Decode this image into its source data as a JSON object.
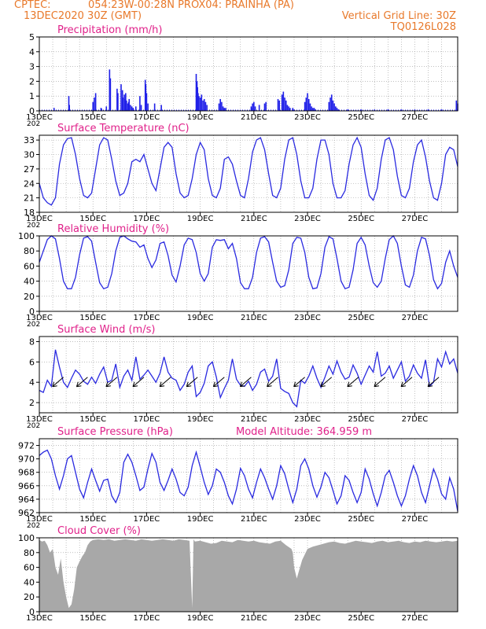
{
  "header": {
    "line1_left": "CPTEC:",
    "line1_mid": "054:23W-00:28N  PROX04: PRAINHA (PA)",
    "line2_left": "13DEC2020 30Z (GMT)",
    "line2_right": "Vertical Grid Line: 30Z",
    "line3_right": "TQ0126L028"
  },
  "colors": {
    "header": "#e8792b",
    "title": "#e0218a",
    "line": "#2a2ae0",
    "bar": "#2020e8",
    "cloud": "#a8a8a8",
    "grid": "#999999",
    "axis": "#000000"
  },
  "x_ticks": [
    "13DEC",
    "15DEC",
    "17DEC",
    "19DEC",
    "21DEC",
    "23DEC",
    "25DEC",
    "27DEC"
  ],
  "x_tick_stub": "202",
  "chart_data": [
    {
      "type": "bar",
      "title": "Precipitation (mm/h)",
      "ylim": [
        0,
        5
      ],
      "yticks": [
        "0",
        "1",
        "2",
        "3",
        "4",
        "5"
      ],
      "x_days": [
        0.55,
        1.1,
        1.12,
        2.0,
        2.05,
        2.1,
        2.3,
        2.32,
        2.5,
        2.62,
        2.65,
        2.9,
        2.93,
        3.05,
        3.1,
        3.12,
        3.17,
        3.2,
        3.22,
        3.25,
        3.3,
        3.33,
        3.35,
        3.4,
        3.45,
        3.5,
        3.6,
        3.75,
        3.8,
        3.95,
        3.97,
        4.0,
        4.05,
        4.3,
        4.55,
        5.85,
        5.88,
        5.9,
        5.92,
        5.95,
        6.0,
        6.05,
        6.1,
        6.15,
        6.2,
        6.25,
        6.7,
        6.75,
        6.8,
        6.85,
        6.9,
        6.95,
        7.9,
        7.92,
        7.95,
        8.0,
        8.05,
        8.2,
        8.4,
        8.45,
        8.9,
        8.95,
        9.05,
        9.1,
        9.15,
        9.2,
        9.25,
        9.3,
        9.35,
        9.45,
        9.5,
        9.9,
        9.95,
        10.0,
        10.05,
        10.1,
        10.15,
        10.2,
        10.25,
        10.3,
        10.8,
        10.85,
        10.9,
        10.95,
        11.0,
        11.05,
        11.1,
        11.15,
        11.5,
        12.0,
        12.5,
        13.0,
        13.5,
        14.0,
        14.5,
        15.0,
        15.55,
        15.6
      ],
      "values": [
        0.2,
        1.0,
        0.4,
        0.6,
        0.9,
        1.2,
        0.2,
        0.15,
        0.3,
        2.8,
        2.2,
        1.5,
        1.2,
        1.8,
        1.4,
        0.9,
        1.1,
        0.8,
        1.2,
        0.7,
        0.5,
        0.6,
        0.8,
        0.4,
        0.3,
        0.2,
        0.3,
        1.0,
        0.4,
        2.1,
        1.8,
        1.2,
        0.5,
        0.5,
        0.4,
        2.5,
        2.0,
        1.6,
        1.2,
        1.0,
        0.9,
        1.1,
        0.7,
        0.8,
        0.6,
        0.4,
        0.5,
        0.8,
        0.6,
        0.3,
        0.2,
        0.2,
        0.3,
        0.2,
        0.5,
        0.6,
        0.3,
        0.4,
        0.5,
        0.6,
        0.8,
        0.7,
        1.1,
        1.3,
        0.9,
        0.7,
        0.4,
        0.3,
        0.2,
        0.2,
        0.1,
        0.6,
        0.9,
        1.2,
        0.8,
        0.5,
        0.3,
        0.2,
        0.2,
        0.1,
        0.6,
        0.9,
        1.1,
        0.7,
        0.5,
        0.3,
        0.2,
        0.1,
        0.1,
        0.1,
        0.1,
        0.1,
        0.1,
        0.1,
        0.1,
        0.1,
        0.7,
        0.5
      ]
    },
    {
      "type": "line",
      "title": "Surface Temperature (nC)",
      "ylim": [
        18,
        34
      ],
      "yticks": [
        "18",
        "21",
        "24",
        "27",
        "30",
        "33"
      ],
      "x_days": [
        0,
        0.15,
        0.3,
        0.45,
        0.6,
        0.75,
        0.9,
        1.05,
        1.2,
        1.35,
        1.5,
        1.65,
        1.8,
        1.95,
        2.1,
        2.25,
        2.4,
        2.55,
        2.7,
        2.85,
        3.0,
        3.15,
        3.3,
        3.45,
        3.6,
        3.75,
        3.9,
        4.05,
        4.2,
        4.35,
        4.5,
        4.65,
        4.8,
        4.95,
        5.1,
        5.25,
        5.4,
        5.55,
        5.7,
        5.85,
        6.0,
        6.15,
        6.3,
        6.45,
        6.6,
        6.75,
        6.9,
        7.05,
        7.2,
        7.35,
        7.5,
        7.65,
        7.8,
        7.95,
        8.1,
        8.25,
        8.4,
        8.55,
        8.7,
        8.85,
        9.0,
        9.15,
        9.3,
        9.45,
        9.6,
        9.75,
        9.9,
        10.05,
        10.2,
        10.35,
        10.5,
        10.65,
        10.8,
        10.95,
        11.1,
        11.25,
        11.4,
        11.55,
        11.7,
        11.85,
        12.0,
        12.15,
        12.3,
        12.45,
        12.6,
        12.75,
        12.9,
        13.05,
        13.2,
        13.35,
        13.5,
        13.65,
        13.8,
        13.95,
        14.1,
        14.25,
        14.4,
        14.55,
        14.7,
        14.85,
        15.0,
        15.15,
        15.3,
        15.45,
        15.6
      ],
      "values": [
        24,
        21,
        20,
        19.5,
        21,
        28,
        32,
        33.3,
        33.5,
        30,
        25,
        21.5,
        21,
        22,
        27,
        32,
        33.5,
        33,
        29,
        24.5,
        21.5,
        22,
        24,
        28.5,
        29,
        28.5,
        30,
        27,
        24,
        22.5,
        27,
        31.5,
        32.5,
        31.5,
        26,
        22,
        21,
        21.5,
        25,
        30,
        32.5,
        31,
        25,
        21.5,
        21,
        23,
        29,
        29.5,
        28,
        24.5,
        21.5,
        21,
        25,
        30.5,
        33,
        33.5,
        31,
        26,
        21.5,
        21,
        23,
        29,
        33,
        33.5,
        30,
        24.5,
        21,
        21,
        23,
        29,
        33,
        33,
        30,
        24,
        21,
        21,
        22.5,
        28,
        32,
        33.5,
        31.5,
        26,
        21.5,
        20.5,
        23,
        29,
        33,
        33.5,
        31,
        25.5,
        21.5,
        21,
        23,
        28.5,
        32,
        33,
        29.5,
        24.5,
        21,
        20.5,
        24,
        30,
        31.5,
        31,
        27.5
      ]
    },
    {
      "type": "line",
      "title": "Relative Humidity (%)",
      "ylim": [
        0,
        100
      ],
      "yticks": [
        "0",
        "20",
        "40",
        "60",
        "80",
        "100"
      ],
      "x_days": [
        0,
        0.15,
        0.3,
        0.45,
        0.6,
        0.75,
        0.9,
        1.05,
        1.2,
        1.35,
        1.5,
        1.65,
        1.8,
        1.95,
        2.1,
        2.25,
        2.4,
        2.55,
        2.7,
        2.85,
        3.0,
        3.15,
        3.3,
        3.45,
        3.6,
        3.75,
        3.9,
        4.05,
        4.2,
        4.35,
        4.5,
        4.65,
        4.8,
        4.95,
        5.1,
        5.25,
        5.4,
        5.55,
        5.7,
        5.85,
        6.0,
        6.15,
        6.3,
        6.45,
        6.6,
        6.75,
        6.9,
        7.05,
        7.2,
        7.35,
        7.5,
        7.65,
        7.8,
        7.95,
        8.1,
        8.25,
        8.4,
        8.55,
        8.7,
        8.85,
        9.0,
        9.15,
        9.3,
        9.45,
        9.6,
        9.75,
        9.9,
        10.05,
        10.2,
        10.35,
        10.5,
        10.65,
        10.8,
        10.95,
        11.1,
        11.25,
        11.4,
        11.55,
        11.7,
        11.85,
        12.0,
        12.15,
        12.3,
        12.45,
        12.6,
        12.75,
        12.9,
        13.05,
        13.2,
        13.35,
        13.5,
        13.65,
        13.8,
        13.95,
        14.1,
        14.25,
        14.4,
        14.55,
        14.7,
        14.85,
        15.0,
        15.15,
        15.3,
        15.45,
        15.6
      ],
      "values": [
        65,
        80,
        95,
        100,
        96,
        70,
        40,
        30,
        30,
        45,
        75,
        97,
        99,
        93,
        65,
        38,
        30,
        32,
        50,
        80,
        98,
        100,
        96,
        93,
        92,
        85,
        88,
        70,
        58,
        68,
        90,
        92,
        74,
        48,
        39,
        60,
        88,
        97,
        95,
        78,
        50,
        40,
        50,
        85,
        95,
        94,
        95,
        83,
        90,
        70,
        38,
        30,
        30,
        45,
        78,
        97,
        99,
        92,
        65,
        40,
        32,
        34,
        55,
        90,
        98,
        97,
        78,
        45,
        30,
        31,
        50,
        85,
        99,
        96,
        70,
        40,
        30,
        32,
        55,
        90,
        98,
        88,
        60,
        38,
        32,
        40,
        70,
        95,
        100,
        90,
        60,
        35,
        32,
        48,
        80,
        98,
        96,
        74,
        42,
        30,
        37,
        65,
        80,
        60,
        45
      ]
    },
    {
      "type": "line",
      "title": "Surface Wind (m/s)",
      "ylim": [
        1,
        8.5
      ],
      "yticks": [
        "2",
        "4",
        "6",
        "8"
      ],
      "x_days": [
        0,
        0.15,
        0.3,
        0.45,
        0.6,
        0.75,
        0.9,
        1.05,
        1.2,
        1.35,
        1.5,
        1.65,
        1.8,
        1.95,
        2.1,
        2.25,
        2.4,
        2.55,
        2.7,
        2.85,
        3.0,
        3.15,
        3.3,
        3.45,
        3.6,
        3.75,
        3.9,
        4.05,
        4.2,
        4.35,
        4.5,
        4.65,
        4.8,
        4.95,
        5.1,
        5.25,
        5.4,
        5.55,
        5.7,
        5.85,
        6.0,
        6.15,
        6.3,
        6.45,
        6.6,
        6.75,
        6.9,
        7.05,
        7.2,
        7.35,
        7.5,
        7.65,
        7.8,
        7.95,
        8.1,
        8.25,
        8.4,
        8.55,
        8.7,
        8.85,
        9.0,
        9.15,
        9.3,
        9.45,
        9.6,
        9.75,
        9.9,
        10.05,
        10.2,
        10.35,
        10.5,
        10.65,
        10.8,
        10.95,
        11.1,
        11.25,
        11.4,
        11.55,
        11.7,
        11.85,
        12.0,
        12.15,
        12.3,
        12.45,
        12.6,
        12.75,
        12.9,
        13.05,
        13.2,
        13.35,
        13.5,
        13.65,
        13.8,
        13.95,
        14.1,
        14.25,
        14.4,
        14.55,
        14.7,
        14.85,
        15.0,
        15.15,
        15.3,
        15.45,
        15.6
      ],
      "values": [
        3.2,
        3.0,
        4.2,
        3.6,
        7.2,
        5.5,
        4.0,
        3.5,
        4.4,
        5.2,
        4.8,
        4.1,
        3.8,
        4.5,
        3.9,
        4.8,
        5.5,
        4.0,
        4.2,
        5.8,
        3.5,
        4.6,
        5.2,
        4.2,
        6.5,
        4.3,
        4.7,
        5.2,
        4.6,
        4.0,
        4.9,
        6.5,
        5.0,
        4.4,
        4.2,
        3.2,
        3.8,
        5.0,
        5.6,
        2.6,
        3.0,
        3.9,
        5.6,
        6.0,
        4.5,
        2.5,
        3.4,
        4.2,
        6.3,
        4.3,
        3.7,
        3.6,
        4.1,
        3.2,
        3.8,
        5.0,
        5.3,
        4.1,
        4.6,
        6.3,
        3.4,
        3.1,
        2.9,
        2.0,
        1.6,
        4.2,
        3.9,
        4.6,
        5.6,
        4.4,
        3.5,
        4.5,
        5.6,
        4.8,
        6.1,
        5.0,
        4.3,
        4.5,
        5.7,
        4.9,
        3.8,
        4.7,
        5.6,
        5.0,
        7.0,
        4.6,
        4.9,
        5.6,
        4.4,
        5.2,
        6.0,
        4.1,
        4.6,
        5.7,
        4.9,
        4.4,
        6.2,
        3.6,
        4.0,
        6.3,
        5.5,
        7.0,
        5.8,
        6.3,
        4.9
      ],
      "arrow_days": [
        0.9,
        1.8,
        2.9,
        3.9,
        4.9,
        5.9,
        6.9,
        7.9,
        8.9,
        9.9,
        10.9,
        11.9,
        12.9,
        13.9,
        14.9
      ]
    },
    {
      "type": "line",
      "title": "Surface Pressure (hPa)",
      "annotation": "Model Altitude: 364.959  m",
      "ylim": [
        962,
        973
      ],
      "yticks": [
        "962",
        "964",
        "966",
        "968",
        "970",
        "972"
      ],
      "x_days": [
        0,
        0.15,
        0.3,
        0.45,
        0.6,
        0.75,
        0.9,
        1.05,
        1.2,
        1.35,
        1.5,
        1.65,
        1.8,
        1.95,
        2.1,
        2.25,
        2.4,
        2.55,
        2.7,
        2.85,
        3.0,
        3.15,
        3.3,
        3.45,
        3.6,
        3.75,
        3.9,
        4.05,
        4.2,
        4.35,
        4.5,
        4.65,
        4.8,
        4.95,
        5.1,
        5.25,
        5.4,
        5.55,
        5.7,
        5.85,
        6.0,
        6.15,
        6.3,
        6.45,
        6.6,
        6.75,
        6.9,
        7.05,
        7.2,
        7.35,
        7.5,
        7.65,
        7.8,
        7.95,
        8.1,
        8.25,
        8.4,
        8.55,
        8.7,
        8.85,
        9.0,
        9.15,
        9.3,
        9.45,
        9.6,
        9.75,
        9.9,
        10.05,
        10.2,
        10.35,
        10.5,
        10.65,
        10.8,
        10.95,
        11.1,
        11.25,
        11.4,
        11.55,
        11.7,
        11.85,
        12.0,
        12.15,
        12.3,
        12.45,
        12.6,
        12.75,
        12.9,
        13.05,
        13.2,
        13.35,
        13.5,
        13.65,
        13.8,
        13.95,
        14.1,
        14.25,
        14.4,
        14.55,
        14.7,
        14.85,
        15.0,
        15.15,
        15.3,
        15.45,
        15.6
      ],
      "values": [
        970.5,
        971.0,
        971.3,
        970.0,
        967.5,
        965.5,
        967.5,
        970.0,
        970.5,
        968.0,
        965.5,
        964.2,
        966.5,
        968.5,
        966.8,
        965.2,
        966.8,
        967.0,
        964.5,
        963.5,
        965.0,
        969.5,
        970.7,
        969.5,
        967.5,
        965.3,
        965.8,
        968.5,
        970.8,
        969.5,
        966.5,
        965.3,
        966.8,
        968.5,
        967.0,
        965.0,
        964.5,
        965.8,
        969.0,
        971.0,
        968.8,
        966.5,
        964.7,
        966.0,
        968.5,
        968.0,
        966.5,
        964.5,
        963.3,
        965.5,
        968.6,
        967.5,
        965.5,
        964.2,
        966.5,
        968.5,
        967.2,
        965.5,
        964.0,
        966.0,
        969.0,
        967.8,
        965.5,
        963.5,
        965.5,
        969.0,
        970.0,
        968.5,
        966.0,
        964.3,
        965.8,
        968.0,
        967.2,
        965.3,
        963.3,
        964.5,
        967.5,
        966.8,
        965.0,
        963.5,
        965.0,
        968.5,
        967.0,
        964.8,
        963.0,
        965.0,
        967.5,
        968.3,
        966.5,
        964.5,
        963.0,
        964.5,
        967.0,
        969.0,
        967.5,
        965.0,
        963.5,
        966.0,
        968.5,
        967.0,
        964.8,
        964.0,
        967.2,
        965.5,
        962.2
      ]
    },
    {
      "type": "area",
      "title": "Cloud Cover (%)",
      "ylim": [
        0,
        100
      ],
      "yticks": [
        "0",
        "20",
        "40",
        "60",
        "80",
        "100"
      ],
      "x_days": [
        0,
        0.1,
        0.2,
        0.3,
        0.4,
        0.5,
        0.6,
        0.7,
        0.8,
        0.9,
        1.0,
        1.1,
        1.2,
        1.3,
        1.4,
        1.5,
        1.6,
        1.7,
        1.8,
        1.9,
        2.0,
        2.2,
        2.4,
        2.6,
        2.8,
        3.0,
        3.2,
        3.4,
        3.6,
        3.8,
        4.0,
        4.2,
        4.4,
        4.6,
        4.8,
        5.0,
        5.2,
        5.4,
        5.6,
        5.7,
        5.75,
        5.8,
        6.0,
        6.2,
        6.4,
        6.6,
        6.8,
        7.0,
        7.2,
        7.4,
        7.6,
        7.8,
        8.0,
        8.2,
        8.4,
        8.6,
        8.8,
        9.0,
        9.2,
        9.4,
        9.45,
        9.5,
        9.6,
        9.8,
        10.0,
        10.2,
        10.4,
        10.6,
        10.8,
        11.0,
        11.2,
        11.4,
        11.6,
        11.8,
        12.0,
        12.2,
        12.4,
        12.6,
        12.8,
        13.0,
        13.2,
        13.4,
        13.6,
        13.8,
        14.0,
        14.2,
        14.4,
        14.6,
        14.8,
        15.0,
        15.2,
        15.4,
        15.6
      ],
      "values": [
        97,
        95,
        96,
        90,
        80,
        85,
        60,
        50,
        72,
        40,
        20,
        5,
        10,
        30,
        60,
        68,
        75,
        80,
        90,
        95,
        97,
        98,
        97,
        98,
        96,
        97,
        98,
        97,
        96,
        98,
        97,
        96,
        97,
        98,
        97,
        96,
        98,
        97,
        96,
        5,
        98,
        95,
        96,
        94,
        92,
        93,
        96,
        95,
        94,
        97,
        96,
        95,
        96,
        94,
        93,
        92,
        95,
        96,
        90,
        85,
        80,
        60,
        45,
        70,
        85,
        88,
        90,
        92,
        94,
        95,
        93,
        92,
        94,
        96,
        95,
        94,
        93,
        95,
        96,
        94,
        95,
        96,
        94,
        93,
        95,
        94,
        96,
        95,
        94,
        95,
        96,
        95,
        96
      ]
    }
  ]
}
